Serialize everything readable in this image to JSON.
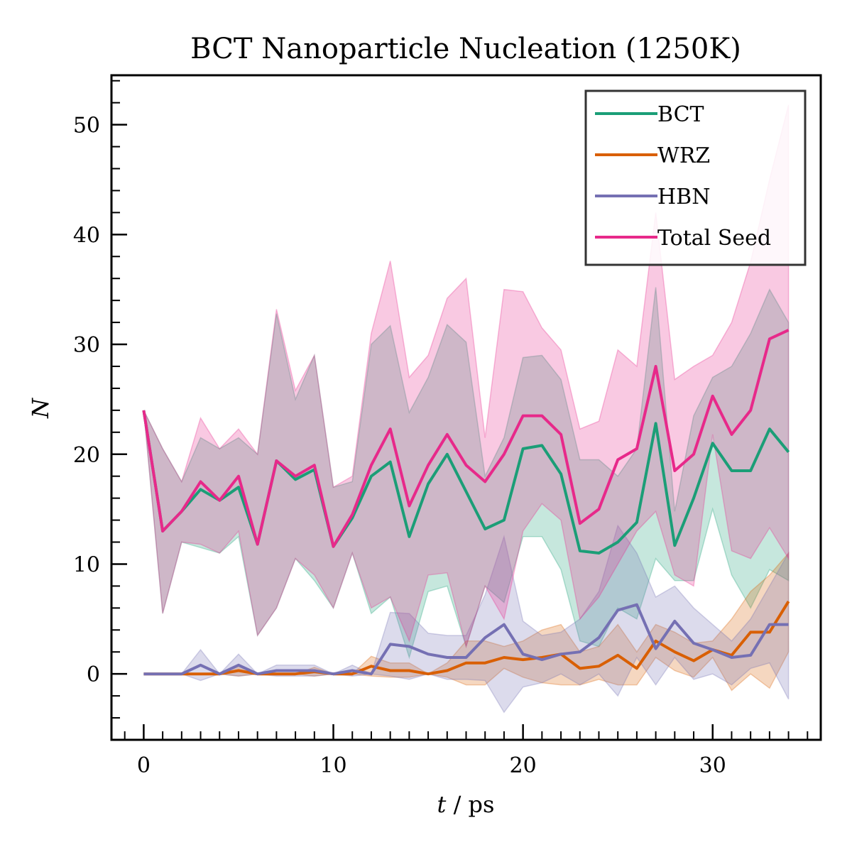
{
  "chart_data": {
    "type": "line",
    "title": "BCT Nanoparticle Nucleation (1250K)",
    "xlabel_var": "t",
    "xlabel_unit": "/ ps",
    "ylabel": "N",
    "xlim": [
      -1.7,
      35.7
    ],
    "ylim": [
      -6,
      54.5
    ],
    "xticks": [
      0,
      10,
      20,
      30
    ],
    "yticks": [
      0,
      10,
      20,
      30,
      40,
      50
    ],
    "grid": false,
    "legend_position": "top-right",
    "x": [
      0,
      1,
      2,
      3,
      4,
      5,
      6,
      7,
      8,
      9,
      10,
      11,
      12,
      13,
      14,
      15,
      16,
      17,
      18,
      19,
      20,
      21,
      22,
      23,
      24,
      25,
      26,
      27,
      28,
      29,
      30,
      31,
      32,
      33,
      34
    ],
    "series": [
      {
        "name": "BCT",
        "color": "#1b9e77",
        "values": [
          24,
          13,
          14.8,
          16.8,
          15.8,
          17,
          11.8,
          19.4,
          17.7,
          18.6,
          11.6,
          14.2,
          18,
          19.3,
          12.5,
          17.3,
          20,
          16.6,
          13.2,
          14,
          20.5,
          20.8,
          18.2,
          11.2,
          11,
          12,
          13.8,
          22.8,
          11.7,
          16,
          21,
          18.5,
          18.5,
          22.3,
          20.2
        ],
        "upper": [
          24,
          20.5,
          17.5,
          21.5,
          20.5,
          21.5,
          20,
          32.8,
          25,
          29,
          17,
          17.5,
          30,
          31.7,
          23.8,
          27,
          31.8,
          30.2,
          18,
          21.5,
          28.8,
          29,
          26.8,
          19.5,
          19.5,
          18,
          20.5,
          35.2,
          14.8,
          23.5,
          27,
          28,
          31,
          35,
          32
        ],
        "lower": [
          24,
          5.5,
          12,
          11.5,
          11,
          12.5,
          3.5,
          6,
          10.5,
          8.5,
          6,
          11,
          5.5,
          7,
          1.5,
          7.5,
          8,
          2.5,
          8,
          6.5,
          12.5,
          12.5,
          9.5,
          3,
          2.5,
          6,
          5,
          10.5,
          8.5,
          8.5,
          15,
          9,
          6,
          9.5,
          8.5
        ]
      },
      {
        "name": "WRZ",
        "color": "#d95f02",
        "values": [
          0,
          0,
          0,
          0,
          0,
          0.3,
          0,
          0,
          0,
          0.2,
          0,
          0,
          0.7,
          0.3,
          0.3,
          0,
          0.3,
          1,
          1,
          1.5,
          1.3,
          1.5,
          1.8,
          0.5,
          0.7,
          1.7,
          0.5,
          3,
          2,
          1.2,
          2.2,
          1.7,
          3.8,
          3.8,
          6.6
        ],
        "upper": [
          0,
          0,
          0,
          0,
          0,
          0.8,
          0,
          0,
          0,
          0.6,
          0,
          0,
          1.6,
          1,
          1,
          0,
          1,
          3,
          3,
          2.5,
          3,
          4,
          4.5,
          2,
          2.5,
          4.5,
          2,
          4.5,
          3.8,
          2.8,
          3,
          5,
          7.5,
          9,
          11
        ],
        "lower": [
          0,
          0,
          0,
          0,
          0,
          -0.2,
          0,
          0,
          0,
          -0.2,
          0,
          0,
          -0.2,
          -0.3,
          -0.3,
          0,
          -0.3,
          -1,
          -1,
          0.5,
          -0.3,
          -0.8,
          -1,
          -1,
          -0.5,
          -1,
          -1,
          1.5,
          0.3,
          -0.3,
          1.5,
          -1.5,
          0,
          -1.3,
          2
        ]
      },
      {
        "name": "HBN",
        "color": "#7570b3",
        "values": [
          0,
          0,
          0,
          0.8,
          0,
          0.8,
          0,
          0.3,
          0.3,
          0.3,
          0,
          0.3,
          0,
          2.7,
          2.5,
          1.8,
          1.5,
          1.5,
          3.3,
          4.5,
          1.8,
          1.3,
          1.8,
          2,
          3.3,
          5.8,
          6.3,
          2.3,
          4.8,
          2.8,
          2.2,
          1.5,
          1.7,
          4.5,
          4.5
        ],
        "upper": [
          0,
          0,
          0,
          2.2,
          0,
          1.8,
          0,
          0.8,
          0.8,
          0.8,
          0,
          0.8,
          0,
          5.6,
          5.5,
          3.7,
          3.5,
          3.5,
          7.2,
          12.5,
          4.8,
          3.5,
          3.8,
          5,
          7.5,
          13.5,
          11,
          7,
          8,
          6,
          4.5,
          3,
          5,
          8,
          11
        ],
        "lower": [
          0,
          0,
          0,
          -0.6,
          0,
          -0.2,
          0,
          -0.2,
          -0.2,
          -0.2,
          0,
          -0.2,
          0,
          -0.2,
          -0.5,
          0,
          -0.5,
          -0.5,
          -0.6,
          -3.5,
          -1.2,
          -0.8,
          0,
          -1,
          0,
          -2,
          1.5,
          -1,
          1.5,
          -0.5,
          0,
          -1,
          0.5,
          1,
          -2.3
        ]
      },
      {
        "name": "Total Seed",
        "color": "#e7298a",
        "values": [
          24,
          13,
          14.8,
          17.5,
          15.8,
          18,
          11.8,
          19.4,
          18,
          19,
          11.6,
          14.5,
          19,
          22.3,
          15.3,
          19,
          21.8,
          19,
          17.5,
          20,
          23.5,
          23.5,
          21.8,
          13.7,
          15,
          19.5,
          20.5,
          28,
          18.5,
          20,
          25.3,
          21.8,
          24,
          30.5,
          31.3
        ],
        "upper": [
          24,
          20.5,
          17.5,
          23.3,
          20.5,
          22.3,
          20,
          33.2,
          25.8,
          29,
          17,
          18,
          31,
          37.6,
          27,
          29,
          34.2,
          36,
          21.5,
          35,
          34.8,
          31.5,
          29.5,
          22.3,
          23,
          29.5,
          28,
          42,
          26.8,
          28,
          29,
          32,
          37.5,
          45,
          51.8
        ],
        "lower": [
          24,
          5.5,
          12,
          11.8,
          11,
          13,
          3.5,
          6,
          10.5,
          9,
          6,
          11,
          6,
          7,
          3,
          9,
          9.2,
          2.5,
          8,
          5,
          13,
          15.5,
          14,
          5,
          7,
          10,
          13,
          14.8,
          9,
          8,
          21.8,
          11.2,
          10.5,
          13.3,
          10.5
        ]
      }
    ]
  }
}
